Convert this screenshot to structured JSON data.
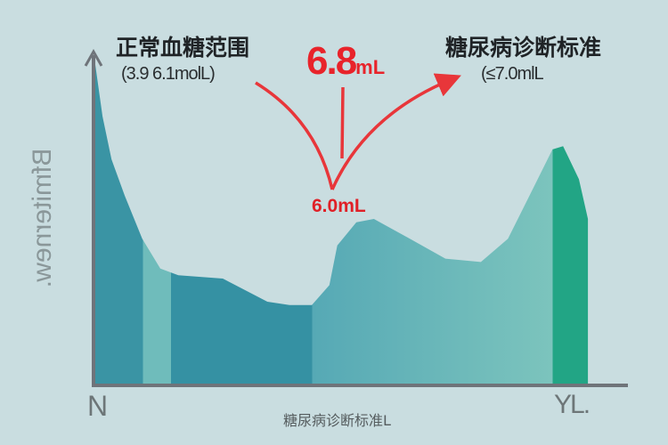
{
  "chart_data": {
    "type": "area",
    "title": "",
    "annotations": {
      "left_title": "正常血糖范围",
      "left_sub": "(3.9 6.1molL)",
      "right_title": "糖尿病诊断标准",
      "right_sub": "(≤7.0mlL",
      "peak_value": "6.8",
      "peak_unit": "mL",
      "mid_value": "6.0mL"
    },
    "ylabel": "Bfmiternew.",
    "xlabel": "糖尿病诊断标准L",
    "x_tick_labels": {
      "start": "N",
      "end": "YL."
    },
    "grid": false,
    "series": [
      {
        "x": [
          0,
          0.3,
          1.7,
          3.4,
          5.9,
          9.2,
          12.6,
          16,
          24.4,
          32.8,
          37,
          41.2,
          44.5,
          46,
          49.6,
          52.9,
          59.7,
          66.4,
          73.1,
          78.2,
          83.2,
          86.6,
          88.6,
          91.6,
          93.3,
          93.3
        ],
        "y": [
          0,
          97,
          81,
          68,
          57,
          44,
          35,
          33,
          32,
          25,
          24,
          24,
          30,
          42,
          49,
          50,
          44,
          38,
          37,
          44,
          60,
          71,
          72,
          62,
          50,
          0
        ]
      }
    ],
    "colors": {
      "band1": "#3a94a4",
      "band2": "#6fbcbb",
      "band3": "#3591a3",
      "band4_start": "#56a9b5",
      "band4_end": "#7cc4bd",
      "band5": "#22a585",
      "arrow": "#e8363a",
      "axis": "#6f747a"
    }
  }
}
